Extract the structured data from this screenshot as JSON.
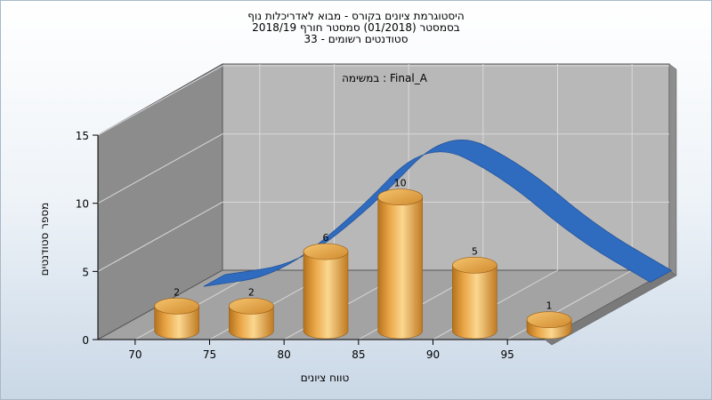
{
  "chart_data": {
    "type": "bar",
    "title_lines": [
      "היסטוגרמת ציונים בקורס - מבוא לאדריכלות נוף",
      "בסמסטר  (01/2018)  סמסטר חורף 2018/19",
      "סטודנטים רשומים - 33"
    ],
    "annotation": "במשימה : Final_A",
    "xlabel": "טווח ציונים",
    "ylabel": "מספר סטודנטים",
    "x_ticks": [
      70,
      75,
      80,
      85,
      90,
      95
    ],
    "y_ticks": [
      0,
      5,
      10,
      15
    ],
    "ylim": [
      0,
      15
    ],
    "xlim": [
      67.5,
      97.5
    ],
    "categories": [
      72.5,
      77.5,
      82.5,
      87.5,
      92.5,
      97.5
    ],
    "values": [
      2,
      2,
      6,
      10,
      5,
      1
    ],
    "curve": {
      "x": [
        70,
        75,
        80,
        85,
        90,
        95,
        100
      ],
      "y": [
        1.1,
        1.9,
        6.2,
        11.9,
        9.2,
        4.6,
        1.4
      ]
    },
    "colors": {
      "bar_light": "#fbd790",
      "bar_mid": "#e9a544",
      "bar_dark": "#b5721e",
      "curve": "#2f6bbf"
    },
    "grid": true
  }
}
